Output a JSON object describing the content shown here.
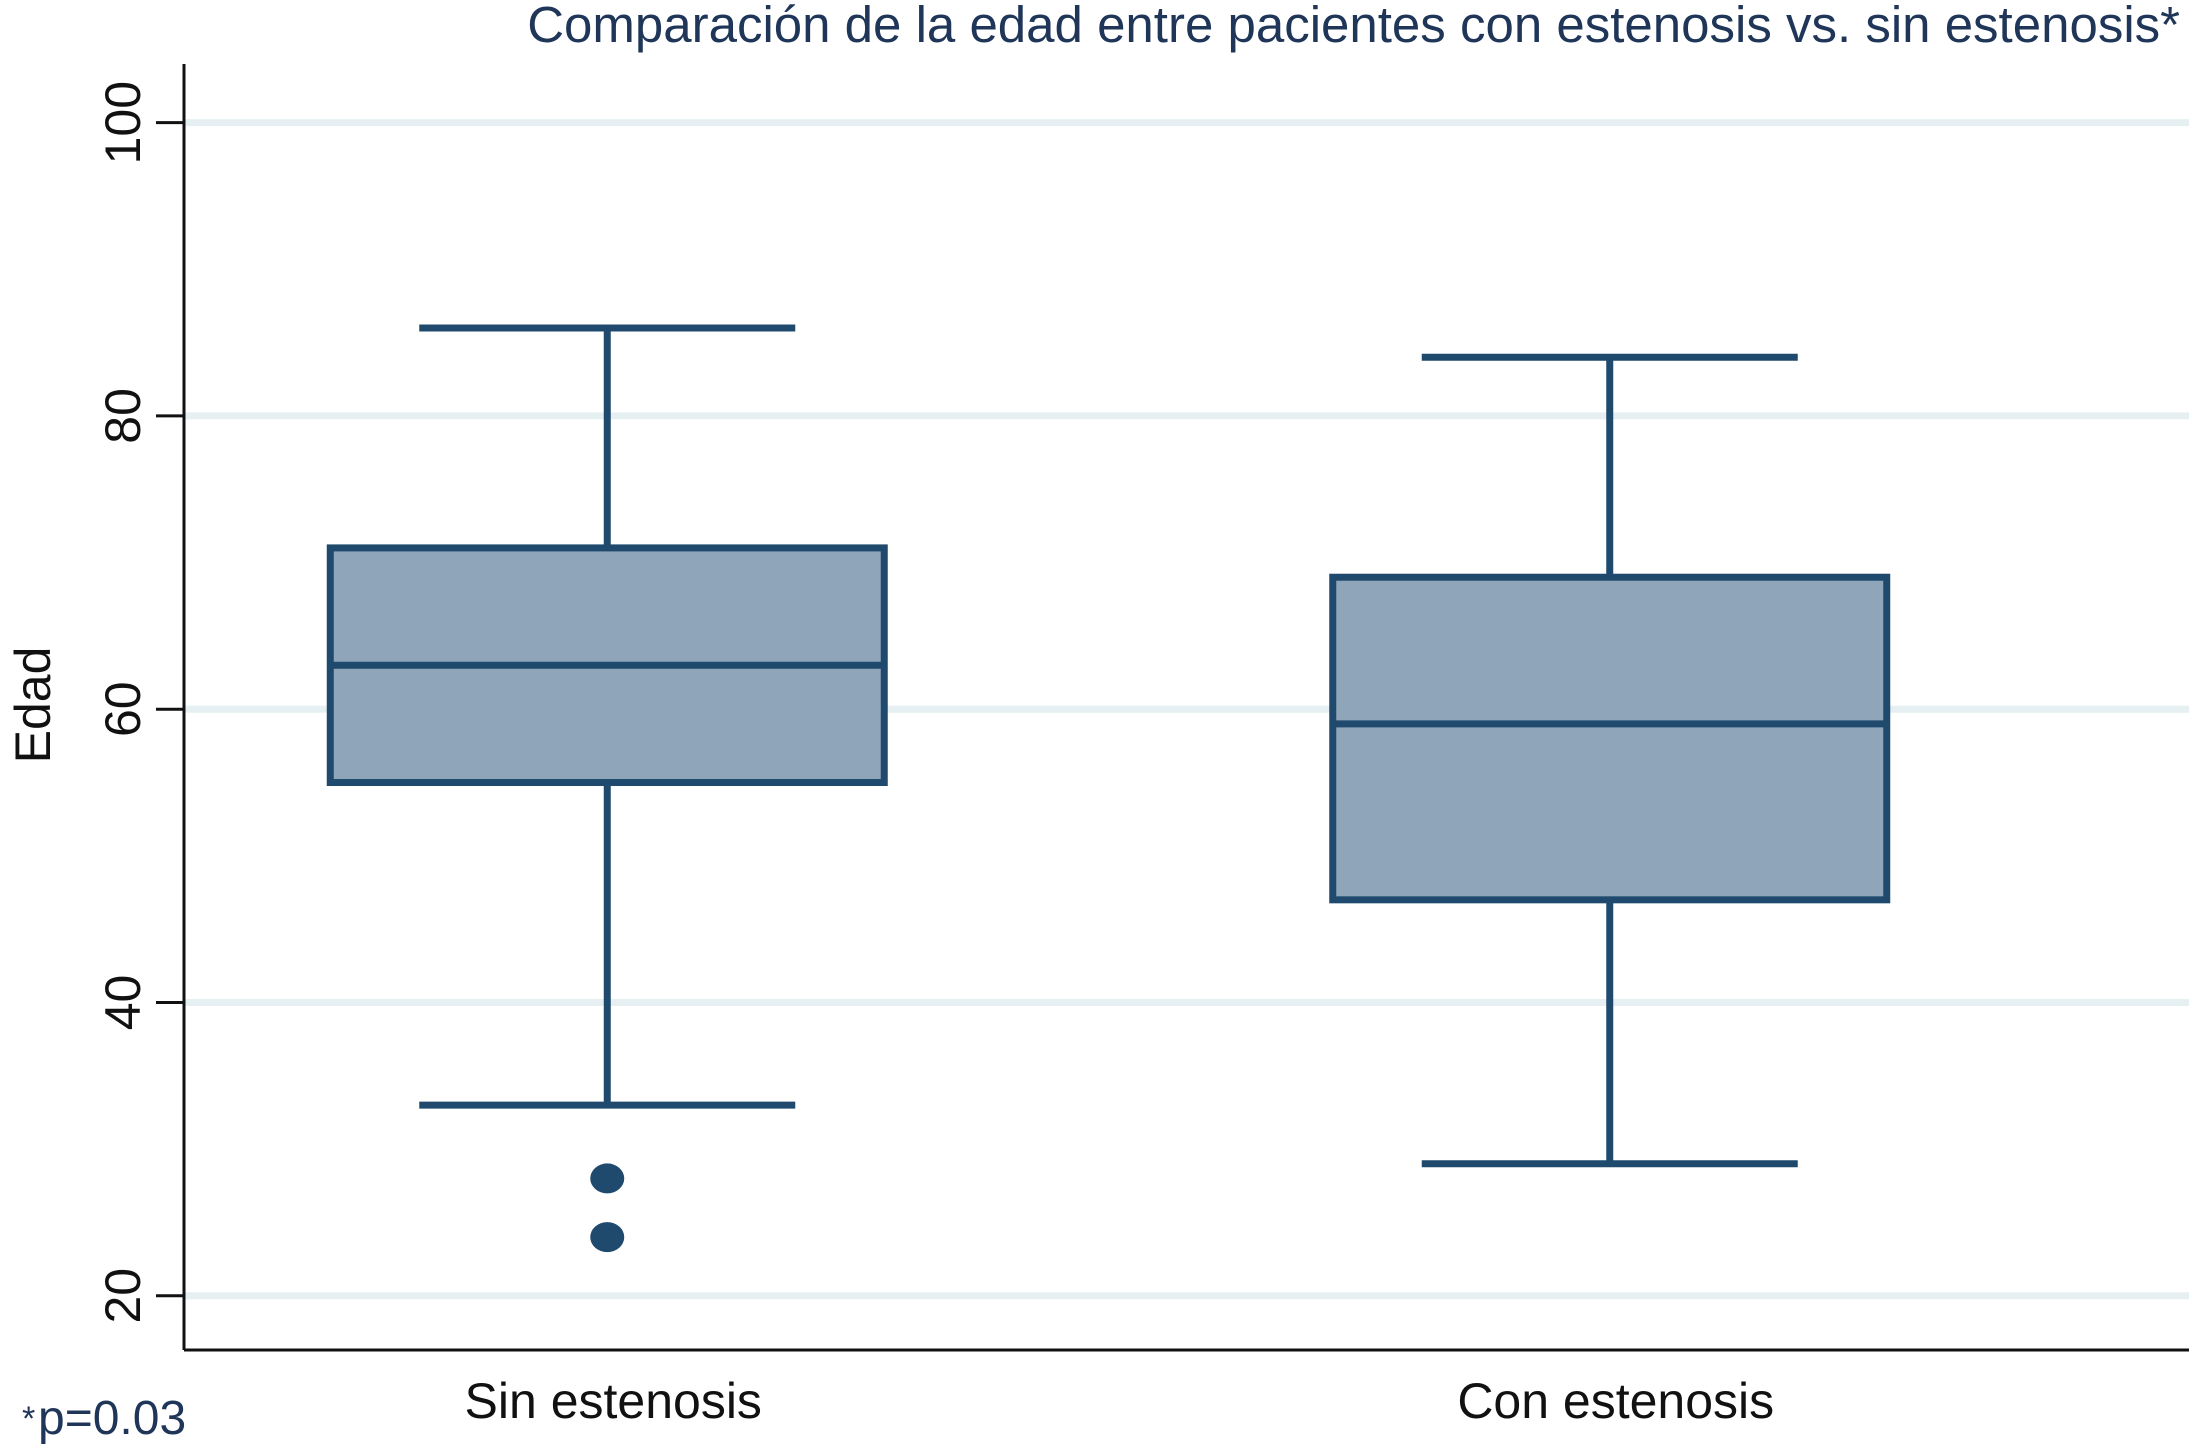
{
  "chart_data": {
    "type": "box",
    "title": "Comparación de la edad entre pacientes con estenosis vs. sin estenosis*",
    "y_label": "Edad",
    "categories": [
      "Sin estenosis",
      "Con estenosis"
    ],
    "boxes": [
      {
        "whisker_low": 33,
        "q1": 55,
        "median": 63,
        "q3": 71,
        "whisker_high": 86,
        "outliers": [
          28,
          24
        ]
      },
      {
        "whisker_low": 29,
        "q1": 47,
        "median": 59,
        "q3": 69,
        "whisker_high": 84,
        "outliers": []
      }
    ],
    "ylim": [
      16.3,
      104
    ],
    "yticks": [
      20,
      40,
      60,
      80,
      100
    ],
    "grid": true,
    "box_color": "#8fa5b9",
    "line_color": "#1f4a6e",
    "footnote": {
      "marker": "*",
      "text": "p=0.03"
    }
  }
}
